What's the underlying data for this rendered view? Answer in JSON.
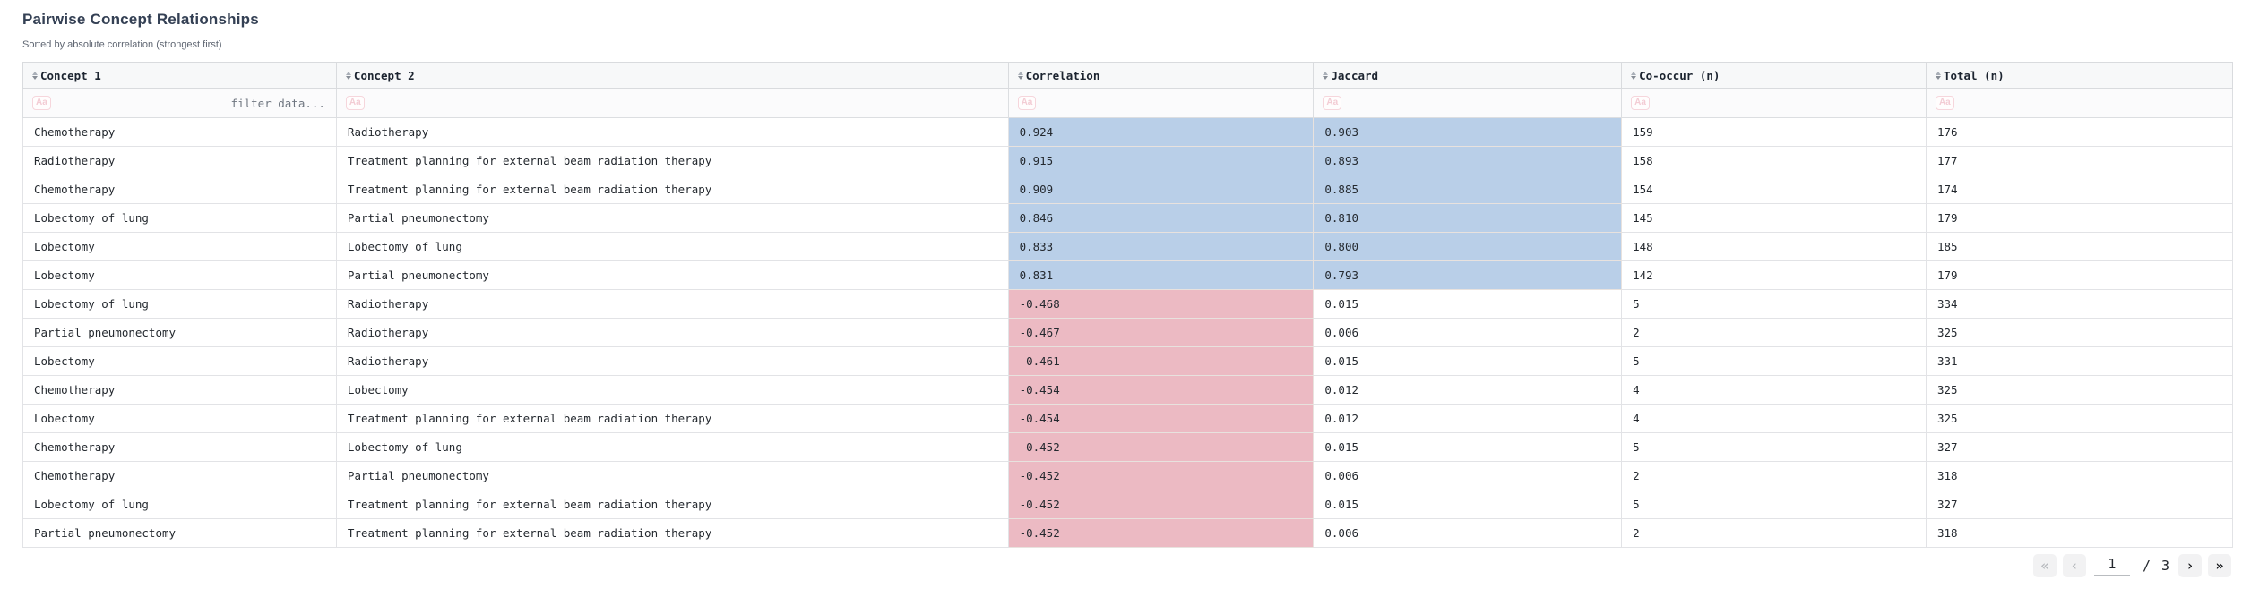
{
  "page": {
    "title": "Pairwise Concept Relationships",
    "subtitle": "Sorted by absolute correlation (strongest first)"
  },
  "colors": {
    "positive_highlight": "#b9cfe8",
    "negative_highlight": "#ecbac3",
    "header_background": "#f7f8f9",
    "title_text": "#344054"
  },
  "icons": {
    "sort_icon": "up-down-triangles",
    "filter_type_icon": "Aa",
    "first_page_icon": "«",
    "prev_page_icon": "‹",
    "next_page_icon": "›",
    "last_page_icon": "»"
  },
  "table": {
    "columns": [
      {
        "key": "concept1",
        "label": "Concept 1"
      },
      {
        "key": "concept2",
        "label": "Concept 2"
      },
      {
        "key": "correlation",
        "label": "Correlation"
      },
      {
        "key": "jaccard",
        "label": "Jaccard"
      },
      {
        "key": "cooccur",
        "label": "Co-occur (n)"
      },
      {
        "key": "total",
        "label": "Total (n)"
      }
    ],
    "filter": {
      "icon_label": "Aa",
      "placeholder": "filter data..."
    },
    "rows": [
      {
        "concept1": "Chemotherapy",
        "concept2": "Radiotherapy",
        "correlation": "0.924",
        "jaccard": "0.903",
        "cooccur": "159",
        "total": "176",
        "correlation_highlight": "positive",
        "jaccard_highlight": "positive"
      },
      {
        "concept1": "Radiotherapy",
        "concept2": "Treatment planning for external beam radiation therapy",
        "correlation": "0.915",
        "jaccard": "0.893",
        "cooccur": "158",
        "total": "177",
        "correlation_highlight": "positive",
        "jaccard_highlight": "positive"
      },
      {
        "concept1": "Chemotherapy",
        "concept2": "Treatment planning for external beam radiation therapy",
        "correlation": "0.909",
        "jaccard": "0.885",
        "cooccur": "154",
        "total": "174",
        "correlation_highlight": "positive",
        "jaccard_highlight": "positive"
      },
      {
        "concept1": "Lobectomy of lung",
        "concept2": "Partial pneumonectomy",
        "correlation": "0.846",
        "jaccard": "0.810",
        "cooccur": "145",
        "total": "179",
        "correlation_highlight": "positive",
        "jaccard_highlight": "positive"
      },
      {
        "concept1": "Lobectomy",
        "concept2": "Lobectomy of lung",
        "correlation": "0.833",
        "jaccard": "0.800",
        "cooccur": "148",
        "total": "185",
        "correlation_highlight": "positive",
        "jaccard_highlight": "positive"
      },
      {
        "concept1": "Lobectomy",
        "concept2": "Partial pneumonectomy",
        "correlation": "0.831",
        "jaccard": "0.793",
        "cooccur": "142",
        "total": "179",
        "correlation_highlight": "positive",
        "jaccard_highlight": "positive"
      },
      {
        "concept1": "Lobectomy of lung",
        "concept2": "Radiotherapy",
        "correlation": "-0.468",
        "jaccard": "0.015",
        "cooccur": "5",
        "total": "334",
        "correlation_highlight": "negative",
        "jaccard_highlight": "none"
      },
      {
        "concept1": "Partial pneumonectomy",
        "concept2": "Radiotherapy",
        "correlation": "-0.467",
        "jaccard": "0.006",
        "cooccur": "2",
        "total": "325",
        "correlation_highlight": "negative",
        "jaccard_highlight": "none"
      },
      {
        "concept1": "Lobectomy",
        "concept2": "Radiotherapy",
        "correlation": "-0.461",
        "jaccard": "0.015",
        "cooccur": "5",
        "total": "331",
        "correlation_highlight": "negative",
        "jaccard_highlight": "none"
      },
      {
        "concept1": "Chemotherapy",
        "concept2": "Lobectomy",
        "correlation": "-0.454",
        "jaccard": "0.012",
        "cooccur": "4",
        "total": "325",
        "correlation_highlight": "negative",
        "jaccard_highlight": "none"
      },
      {
        "concept1": "Lobectomy",
        "concept2": "Treatment planning for external beam radiation therapy",
        "correlation": "-0.454",
        "jaccard": "0.012",
        "cooccur": "4",
        "total": "325",
        "correlation_highlight": "negative",
        "jaccard_highlight": "none"
      },
      {
        "concept1": "Chemotherapy",
        "concept2": "Lobectomy of lung",
        "correlation": "-0.452",
        "jaccard": "0.015",
        "cooccur": "5",
        "total": "327",
        "correlation_highlight": "negative",
        "jaccard_highlight": "none"
      },
      {
        "concept1": "Chemotherapy",
        "concept2": "Partial pneumonectomy",
        "correlation": "-0.452",
        "jaccard": "0.006",
        "cooccur": "2",
        "total": "318",
        "correlation_highlight": "negative",
        "jaccard_highlight": "none"
      },
      {
        "concept1": "Lobectomy of lung",
        "concept2": "Treatment planning for external beam radiation therapy",
        "correlation": "-0.452",
        "jaccard": "0.015",
        "cooccur": "5",
        "total": "327",
        "correlation_highlight": "negative",
        "jaccard_highlight": "none"
      },
      {
        "concept1": "Partial pneumonectomy",
        "concept2": "Treatment planning for external beam radiation therapy",
        "correlation": "-0.452",
        "jaccard": "0.006",
        "cooccur": "2",
        "total": "318",
        "correlation_highlight": "negative",
        "jaccard_highlight": "none"
      }
    ]
  },
  "pagination": {
    "first_icon": "«",
    "prev_icon": "‹",
    "current_page": "1",
    "separator": "/",
    "total_pages": "3",
    "next_icon": "›",
    "last_icon": "»"
  }
}
